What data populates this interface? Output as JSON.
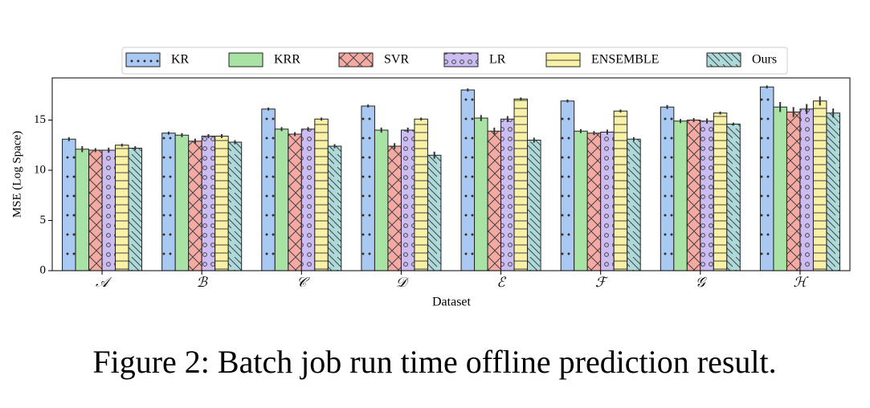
{
  "chart_data": {
    "type": "bar",
    "x_label": "Dataset",
    "y_label": "MSE (Log Space)",
    "caption": "Figure 2: Batch job run time offline prediction result.",
    "categories": [
      "𝒜",
      "ℬ",
      "𝒞",
      "𝒟",
      "ℰ",
      "ℱ",
      "𝒢",
      "ℋ"
    ],
    "ylim": [
      0,
      19.2
    ],
    "yticks": [
      0,
      5,
      10,
      15
    ],
    "legend": "upper center",
    "series": [
      {
        "name": "KR",
        "color": "#a9c9f2",
        "hatch": "dots",
        "values": [
          13.1,
          13.7,
          16.1,
          16.4,
          18.0,
          16.9,
          16.3,
          18.3
        ],
        "errors": [
          0.2,
          0.15,
          0.15,
          0.15,
          0.15,
          0.15,
          0.2,
          0.15
        ]
      },
      {
        "name": "KRR",
        "color": "#a8e2a4",
        "values": [
          12.1,
          13.5,
          14.1,
          14.0,
          15.2,
          13.9,
          14.9,
          16.3
        ],
        "errors": [
          0.3,
          0.2,
          0.2,
          0.25,
          0.3,
          0.2,
          0.2,
          0.5
        ]
      },
      {
        "name": "SVR",
        "color": "#f5a9a3",
        "hatch": "cross",
        "values": [
          12.0,
          12.9,
          13.6,
          12.4,
          13.9,
          13.7,
          15.0,
          15.8
        ],
        "errors": [
          0.2,
          0.25,
          0.2,
          0.3,
          0.35,
          0.2,
          0.2,
          0.5
        ]
      },
      {
        "name": "LR",
        "color": "#cbbdf2",
        "hatch": "circles",
        "values": [
          12.0,
          13.4,
          14.1,
          14.0,
          15.1,
          13.8,
          14.9,
          16.1
        ],
        "errors": [
          0.25,
          0.2,
          0.2,
          0.25,
          0.3,
          0.25,
          0.25,
          0.5
        ]
      },
      {
        "name": "ENSEMBLE",
        "color": "#f9f1a6",
        "hatch": "hlines",
        "values": [
          12.5,
          13.4,
          15.1,
          15.1,
          17.1,
          15.9,
          15.7,
          16.9
        ],
        "errors": [
          0.15,
          0.2,
          0.15,
          0.15,
          0.15,
          0.15,
          0.15,
          0.45
        ]
      },
      {
        "name": "Ours",
        "color": "#acdada",
        "hatch": "diag",
        "values": [
          12.2,
          12.8,
          12.4,
          11.5,
          13.0,
          13.1,
          14.6,
          15.7
        ],
        "errors": [
          0.2,
          0.2,
          0.2,
          0.35,
          0.25,
          0.2,
          0.15,
          0.45
        ]
      }
    ]
  }
}
